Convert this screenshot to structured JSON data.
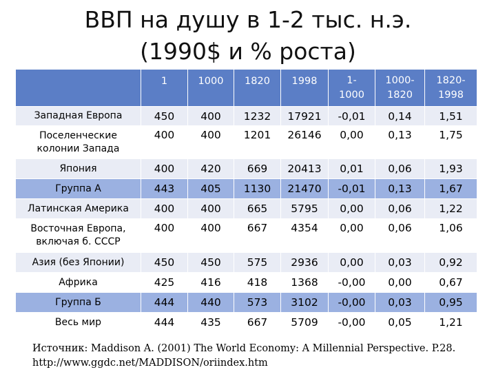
{
  "title": {
    "line1": "ВВП на душу в 1-2 тыс. н.э.",
    "line2": "(1990$ и % роста)"
  },
  "table": {
    "columns": [
      {
        "line1": "1",
        "line2": ""
      },
      {
        "line1": "1000",
        "line2": ""
      },
      {
        "line1": "1820",
        "line2": ""
      },
      {
        "line1": "1998",
        "line2": ""
      },
      {
        "line1": "1-",
        "line2": "1000"
      },
      {
        "line1": "1000-",
        "line2": "1820"
      },
      {
        "line1": "1820-",
        "line2": "1998"
      }
    ],
    "rows": [
      {
        "name": "Западная Европа",
        "values": [
          "450",
          "400",
          "1232",
          "17921",
          "-0,01",
          "0,14",
          "1,51"
        ],
        "highlight": false
      },
      {
        "name": "Поселенческие колонии Запада",
        "values": [
          "400",
          "400",
          "1201",
          "26146",
          "0,00",
          "0,13",
          "1,75"
        ],
        "highlight": false
      },
      {
        "name": "Япония",
        "values": [
          "400",
          "420",
          "669",
          "20413",
          "0,01",
          "0,06",
          "1,93"
        ],
        "highlight": false
      },
      {
        "name": "Группа А",
        "values": [
          "443",
          "405",
          "1130",
          "21470",
          "-0,01",
          "0,13",
          "1,67"
        ],
        "highlight": true
      },
      {
        "name": "Латинская Америка",
        "values": [
          "400",
          "400",
          "665",
          "5795",
          "0,00",
          "0,06",
          "1,22"
        ],
        "highlight": false
      },
      {
        "name": "Восточная Европа, включая б. СССР",
        "values": [
          "400",
          "400",
          "667",
          "4354",
          "0,00",
          "0,06",
          "1,06"
        ],
        "highlight": false
      },
      {
        "name": "Азия (без Японии)",
        "values": [
          "450",
          "450",
          "575",
          "2936",
          "0,00",
          "0,03",
          "0,92"
        ],
        "highlight": false
      },
      {
        "name": "Африка",
        "values": [
          "425",
          "416",
          "418",
          "1368",
          "-0,00",
          "0,00",
          "0,67"
        ],
        "highlight": false
      },
      {
        "name": "Группа Б",
        "values": [
          "444",
          "440",
          "573",
          "3102",
          "-0,00",
          "0,03",
          "0,95"
        ],
        "highlight": true
      },
      {
        "name": "Весь мир",
        "values": [
          "444",
          "435",
          "667",
          "5709",
          "-0,00",
          "0,05",
          "1,21"
        ],
        "highlight": false
      }
    ]
  },
  "source": {
    "line1": "Источник: Maddison A. (2001) The World Economy: A Millennial Perspective. P.28.",
    "line2": "http://www.ggdc.net/MADDISON/oriindex.htm"
  },
  "colors": {
    "header": "#5b7ec6",
    "row_band": "#e9ecf5",
    "row_highlight": "#9bb1e1"
  }
}
